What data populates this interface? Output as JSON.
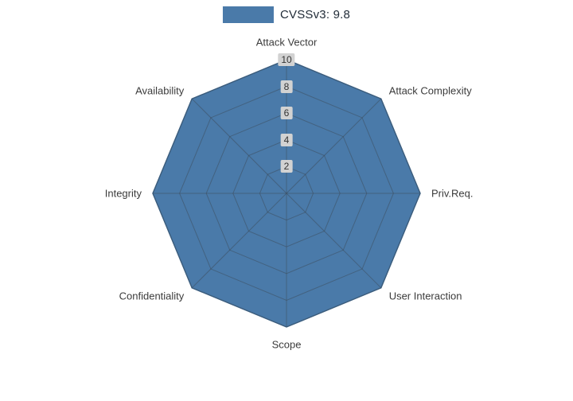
{
  "legend": {
    "label": "CVSSv3: 9.8"
  },
  "chart_data": {
    "type": "radar",
    "categories": [
      "Attack Vector",
      "Attack Complexity",
      "Priv.Req.",
      "User Interaction",
      "Scope",
      "Confidentiality",
      "Integrity",
      "Availability"
    ],
    "series": [
      {
        "name": "CVSSv3: 9.8",
        "values": [
          10,
          10,
          10,
          10,
          10,
          10,
          10,
          10
        ],
        "color": "#4a7aa9"
      }
    ],
    "radial_ticks": [
      2,
      4,
      6,
      8,
      10
    ],
    "rlim": [
      0,
      10
    ],
    "grid": true,
    "legend_position": "top-center",
    "edge_color": "#3e6a94",
    "grid_color": "#3c4a58",
    "tick_label_bg": "#d2d2d2",
    "label_color": "#3b3b3b",
    "background_color": "#ffffff"
  }
}
